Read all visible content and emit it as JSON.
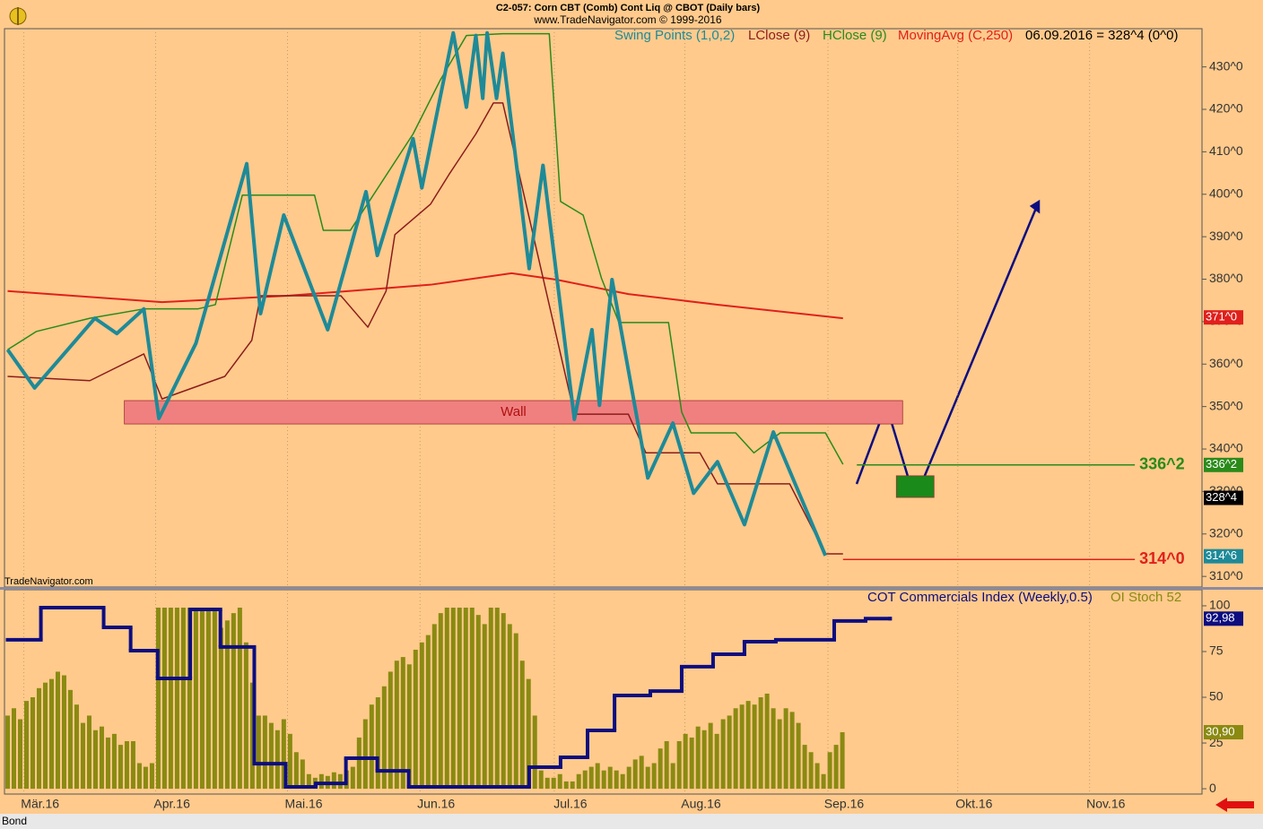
{
  "header": {
    "title": "C2-057:  Corn CBT (Comb) Cont Liq @ CBOT  (Daily bars)",
    "subtitle": "www.TradeNavigator.com © 1999-2016",
    "watermark": "TradeNavigator.com",
    "symbol": "Bond"
  },
  "chart_data": [
    {
      "type": "line",
      "legend_text": "06.09.2016 = 328^4 (0^0)",
      "xlim": [
        -0.5,
        190.3
      ],
      "ylim": [
        307.5,
        439
      ],
      "yticks": [
        {
          "value": 310,
          "label": "310^0"
        },
        {
          "value": 320,
          "label": "320^0"
        },
        {
          "value": 330,
          "label": "330^0"
        },
        {
          "value": 340,
          "label": "340^0"
        },
        {
          "value": 350,
          "label": "350^0"
        },
        {
          "value": 360,
          "label": "360^0"
        },
        {
          "value": 370,
          "label": "370^0"
        },
        {
          "value": 380,
          "label": "380^0"
        },
        {
          "value": 390,
          "label": "390^0"
        },
        {
          "value": 400,
          "label": "400^0"
        },
        {
          "value": 410,
          "label": "410^0"
        },
        {
          "value": 420,
          "label": "420^0"
        },
        {
          "value": 430,
          "label": "430^0"
        }
      ],
      "grid": true,
      "last_close": {
        "value": 328.5,
        "label": "328^4"
      },
      "series": [
        {
          "name": "Swing Points (1,0,2)",
          "color": "#1e8a98",
          "width": 4,
          "x": [
            0,
            4.3,
            13.9,
            17.4,
            21.7,
            24.1,
            30,
            38.1,
            40.3,
            44,
            51,
            57.1,
            58.9,
            64.6,
            66,
            71,
            73.1,
            74.6,
            75.7,
            76.4,
            77.9,
            78.9,
            83.1,
            85.3,
            90.3,
            93.1,
            94.3,
            96.3,
            102,
            106,
            109.3,
            113.1,
            117.4,
            122,
            130.3
          ],
          "values": [
            363.4,
            354.4,
            370.8,
            367.2,
            373.0,
            347.2,
            364.9,
            407.2,
            371.9,
            395.1,
            368.1,
            400.6,
            385.6,
            413.1,
            401.5,
            438,
            420.5,
            437.4,
            422.6,
            438,
            422.6,
            433.2,
            382.5,
            406.8,
            347.0,
            368.1,
            350.3,
            379.9,
            333.2,
            346.1,
            329.6,
            337.0,
            322.2,
            344.0,
            314.9
          ],
          "current": {
            "value": 314.75,
            "label": "314^6"
          }
        },
        {
          "name": "LClose (9)",
          "color": "#8b1c1c",
          "width": 1.5,
          "x": [
            0,
            13.1,
            21.7,
            24.6,
            34.6,
            38.9,
            40.3,
            53.1,
            57.4,
            60.3,
            61.7,
            67.4,
            70.3,
            74.6,
            77.4,
            78.9,
            90.3,
            98.9,
            101.7,
            110.3,
            113.1,
            124.6,
            130.3,
            133.1
          ],
          "values": [
            357.1,
            356.1,
            362.4,
            351.8,
            357.1,
            365.6,
            376.1,
            376.1,
            368.7,
            377.2,
            390.5,
            397.7,
            404.6,
            414.2,
            421.5,
            421.5,
            348.2,
            348.2,
            339.1,
            339.1,
            331.8,
            331.8,
            315.3,
            315.3
          ]
        },
        {
          "name": "HClose (9)",
          "color": "#2a8a1a",
          "width": 1.5,
          "x": [
            0,
            4.6,
            13.1,
            21.7,
            30.3,
            33.1,
            37.4,
            48.9,
            50.3,
            54.6,
            64.6,
            68.9,
            73.1,
            78.9,
            86.3,
            88.1,
            91.7,
            94.6,
            97.4,
            105.3,
            107.4,
            108.9,
            116,
            118.9,
            123.1,
            130.3,
            133.1
          ],
          "values": [
            363.4,
            367.7,
            370.8,
            373.0,
            373.0,
            374.0,
            399.8,
            399.8,
            391.5,
            391.5,
            414.2,
            426.8,
            437.4,
            437.8,
            437.8,
            398.3,
            395.1,
            380.3,
            369.8,
            369.8,
            348.7,
            343.8,
            343.8,
            339.1,
            343.8,
            343.8,
            336.4
          ],
          "current": {
            "value": 336.25,
            "label": "336^2"
          }
        },
        {
          "name": "MovingAvg (C,250)",
          "color": "#e0201c",
          "width": 2,
          "x": [
            0,
            24.6,
            44.6,
            67.4,
            80.3,
            87.4,
            98.9,
            113.1,
            133.1
          ],
          "values": [
            377.2,
            374.6,
            376.1,
            378.7,
            381.4,
            379.9,
            376.5,
            374.0,
            370.8
          ],
          "current": {
            "value": 371,
            "label": "371^0"
          }
        }
      ],
      "annotations": [
        {
          "text": "Wall",
          "x_range": [
            18.6,
            142.6
          ],
          "y_range": [
            345.9,
            351.4
          ],
          "color": "#f08080"
        },
        {
          "text": "336^2",
          "value": 336.25,
          "x_range": [
            135.3,
            179.6
          ],
          "color": "#2a8a1a"
        },
        {
          "text": "314^0",
          "value": 314,
          "x_range": [
            133.1,
            179.6
          ],
          "color": "#e0201c"
        },
        {
          "x_range": [
            141.6,
            147.6
          ],
          "y_range": [
            328.6,
            333.7
          ],
          "color": "#1a8a1a"
        }
      ]
    },
    {
      "type": "bar",
      "xlim": [
        -0.5,
        190.3
      ],
      "ylim": [
        -2.9,
        108.8
      ],
      "yticks": [
        0,
        25,
        50,
        75,
        100
      ],
      "xticks": [
        {
          "value": 2.6,
          "label": "Mär.16"
        },
        {
          "value": 23.6,
          "label": "Apr.16"
        },
        {
          "value": 44.6,
          "label": "Mai.16"
        },
        {
          "value": 65.7,
          "label": "Jun.16"
        },
        {
          "value": 87.1,
          "label": "Jul.16"
        },
        {
          "value": 107.9,
          "label": "Aug.16"
        },
        {
          "value": 130.7,
          "label": "Sep.16"
        },
        {
          "value": 151.4,
          "label": "Okt.16"
        },
        {
          "value": 172.4,
          "label": "Nov.16"
        }
      ],
      "series": [
        {
          "name": "COT Commercials Index (Weekly,0.5)",
          "type": "step",
          "color": "#0d0d80",
          "x": [
            0,
            5.3,
            15.3,
            19.6,
            23.9,
            29.1,
            33.9,
            39.3,
            44.3,
            49.1,
            53.9,
            58.9,
            63.9,
            83.1,
            88.1,
            92.4,
            96.7,
            102.4,
            107.4,
            112.4,
            117.4,
            122.4,
            131.7,
            136.7,
            140.6
          ],
          "values": [
            81.4,
            99.0,
            88.2,
            75.5,
            60.3,
            98.0,
            77.5,
            13.7,
            1.0,
            2.9,
            16.7,
            9.8,
            1.0,
            11.8,
            17.2,
            31.9,
            51.0,
            53.4,
            66.7,
            73.5,
            80.4,
            81.4,
            91.7,
            92.98,
            92.98
          ],
          "current": {
            "value": 92.98,
            "label": "92,98"
          }
        },
        {
          "name": "OI Stoch 52",
          "type": "bar",
          "color": "#8a8a12",
          "x": [
            0,
            1,
            2,
            3,
            4,
            5,
            6,
            7,
            8,
            9,
            10,
            11,
            12,
            13,
            14,
            15,
            16,
            17,
            18,
            19,
            20,
            21,
            22,
            23,
            24,
            25,
            26,
            27,
            28,
            29,
            30,
            31,
            32,
            33,
            34,
            35,
            36,
            37,
            38,
            39,
            40,
            41,
            42,
            43,
            44,
            45,
            46,
            47,
            48,
            49,
            50,
            51,
            52,
            53,
            54,
            55,
            56,
            57,
            58,
            59,
            60,
            61,
            62,
            63,
            64,
            65,
            66,
            67,
            68,
            69,
            70,
            71,
            72,
            73,
            74,
            75,
            76,
            77,
            78,
            79,
            80,
            81,
            82,
            83,
            84,
            85,
            86,
            87,
            88,
            89,
            90,
            91,
            92,
            93,
            94,
            95,
            96,
            97,
            98,
            99,
            100,
            101,
            102,
            103,
            104,
            105,
            106,
            107,
            108,
            109,
            110,
            111,
            112,
            113,
            114,
            115,
            116,
            117,
            118,
            119,
            120,
            121,
            122,
            123,
            124,
            125,
            126,
            127,
            128,
            129,
            130,
            131,
            132,
            133
          ],
          "values": [
            40,
            44,
            38,
            48,
            50,
            55,
            58,
            60,
            64,
            62,
            54,
            46,
            36,
            40,
            32,
            34,
            28,
            30,
            24,
            26,
            26,
            14,
            12,
            14,
            99,
            99,
            99,
            99,
            99,
            99,
            99,
            99,
            99,
            99,
            88,
            92,
            96,
            99,
            80,
            58,
            40,
            40,
            36,
            32,
            38,
            30,
            20,
            16,
            8,
            6,
            8,
            7,
            9,
            8,
            10,
            12,
            28,
            38,
            46,
            50,
            56,
            64,
            70,
            72,
            68,
            76,
            80,
            84,
            90,
            96,
            99,
            99,
            99,
            99,
            99,
            95,
            90,
            99,
            99,
            96,
            90,
            85,
            70,
            60,
            40,
            10,
            6,
            6,
            8,
            4,
            4,
            8,
            10,
            12,
            14,
            10,
            12,
            10,
            8,
            12,
            16,
            18,
            12,
            14,
            22,
            26,
            14,
            26,
            30,
            28,
            34,
            32,
            36,
            30,
            38,
            40,
            44,
            46,
            48,
            46,
            50,
            52,
            44,
            38,
            44,
            42,
            36,
            24,
            20,
            14,
            8,
            20,
            24,
            30.9
          ],
          "current": {
            "value": 30.9,
            "label": "30,90"
          }
        }
      ]
    }
  ]
}
